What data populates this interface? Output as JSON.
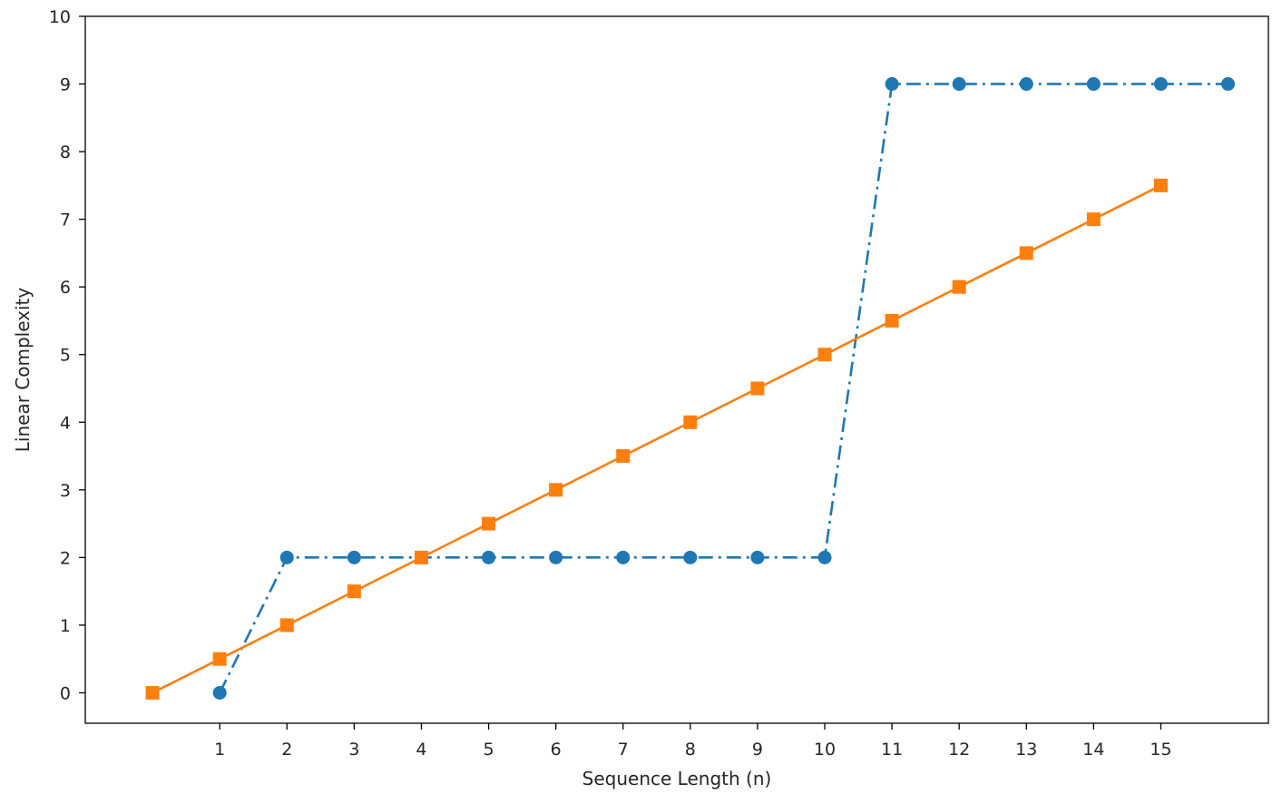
{
  "chart_data": {
    "type": "line",
    "xlabel": "Sequence Length (n)",
    "ylabel": "Linear Complexity",
    "xlim": [
      -1,
      16.6
    ],
    "ylim": [
      -0.45,
      10
    ],
    "xticks": [
      1,
      2,
      3,
      4,
      5,
      6,
      7,
      8,
      9,
      10,
      11,
      12,
      13,
      14,
      15
    ],
    "yticks": [
      0,
      1,
      2,
      3,
      4,
      5,
      6,
      7,
      8,
      9,
      10
    ],
    "grid": false,
    "legend": "none",
    "series": [
      {
        "color": "#1f77b4",
        "line_style": "dashdot",
        "marker": "circle",
        "x": [
          1,
          2,
          3,
          4,
          5,
          6,
          7,
          8,
          9,
          10,
          11,
          12,
          13,
          14,
          15,
          16
        ],
        "values": [
          0,
          2,
          2,
          2,
          2,
          2,
          2,
          2,
          2,
          2,
          9,
          9,
          9,
          9,
          9,
          9
        ]
      },
      {
        "color": "#ff7f0e",
        "line_style": "solid",
        "marker": "square",
        "x": [
          0,
          1,
          2,
          3,
          4,
          5,
          6,
          7,
          8,
          9,
          10,
          11,
          12,
          13,
          14,
          15
        ],
        "values": [
          0,
          0.5,
          1,
          1.5,
          2,
          2.5,
          3,
          3.5,
          4,
          4.5,
          5,
          5.5,
          6,
          6.5,
          7,
          7.5
        ]
      }
    ]
  }
}
